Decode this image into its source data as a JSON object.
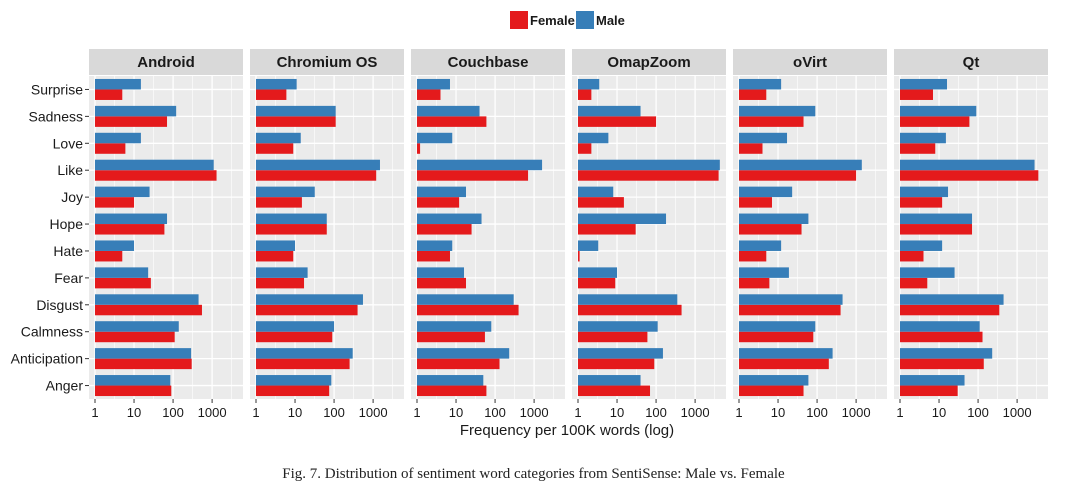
{
  "caption": "Fig. 7.  Distribution of sentiment word categories from SentiSense: Male vs. Female",
  "chart_data": {
    "type": "bar",
    "orientation": "horizontal",
    "xscale": "log",
    "xlabel": "Frequency per 100K words (log)",
    "xlim": [
      1,
      5500
    ],
    "xticks": [
      1,
      10,
      100,
      1000
    ],
    "xtick_labels": [
      "1",
      "10",
      "100",
      "1000"
    ],
    "grid": true,
    "legend": {
      "position": "top-center",
      "entries": [
        "Female",
        "Male"
      ]
    },
    "colors": {
      "Female": "#e41a1c",
      "Male": "#377eb8"
    },
    "categories": [
      "Surprise",
      "Sadness",
      "Love",
      "Like",
      "Joy",
      "Hope",
      "Hate",
      "Fear",
      "Disgust",
      "Calmness",
      "Anticipation",
      "Anger"
    ],
    "panels": [
      {
        "title": "Android",
        "series": [
          {
            "name": "Female",
            "values": [
              5,
              70,
              6,
              1300,
              10,
              60,
              5,
              27,
              550,
              110,
              300,
              90
            ]
          },
          {
            "name": "Male",
            "values": [
              15,
              120,
              15,
              1100,
              25,
              70,
              10,
              23,
              450,
              140,
              290,
              85
            ]
          }
        ]
      },
      {
        "title": "Chromium OS",
        "series": [
          {
            "name": "Female",
            "values": [
              6,
              110,
              9,
              1200,
              15,
              65,
              9,
              17,
              400,
              90,
              250,
              75
            ]
          },
          {
            "name": "Male",
            "values": [
              11,
              110,
              14,
              1500,
              32,
              65,
              10,
              21,
              550,
              100,
              300,
              85
            ]
          }
        ]
      },
      {
        "title": "Couchbase",
        "series": [
          {
            "name": "Female",
            "values": [
              4,
              60,
              1.2,
              700,
              12,
              25,
              7,
              18,
              400,
              55,
              130,
              60
            ]
          },
          {
            "name": "Male",
            "values": [
              7,
              40,
              8,
              1600,
              18,
              45,
              8,
              16,
              300,
              80,
              230,
              50
            ]
          }
        ]
      },
      {
        "title": "OmapZoom",
        "series": [
          {
            "name": "Female",
            "values": [
              2.2,
              100,
              2.2,
              4000,
              15,
              30,
              1.1,
              9,
              450,
              60,
              90,
              70
            ]
          },
          {
            "name": "Male",
            "values": [
              3.5,
              40,
              6,
              4300,
              8,
              180,
              3.3,
              10,
              350,
              110,
              150,
              40
            ]
          }
        ]
      },
      {
        "title": "oVirt",
        "series": [
          {
            "name": "Female",
            "values": [
              5,
              45,
              4,
              1000,
              7,
              40,
              5,
              6,
              400,
              80,
              200,
              45
            ]
          },
          {
            "name": "Male",
            "values": [
              12,
              90,
              17,
              1400,
              23,
              60,
              12,
              19,
              450,
              90,
              250,
              60
            ]
          }
        ]
      },
      {
        "title": "Qt",
        "series": [
          {
            "name": "Female",
            "values": [
              7,
              60,
              8,
              3500,
              12,
              70,
              4,
              5,
              350,
              130,
              140,
              30
            ]
          },
          {
            "name": "Male",
            "values": [
              16,
              90,
              15,
              2800,
              17,
              70,
              12,
              25,
              450,
              110,
              230,
              45
            ]
          }
        ]
      }
    ]
  }
}
